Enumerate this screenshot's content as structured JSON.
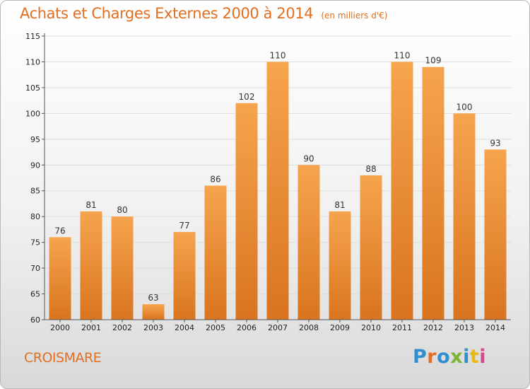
{
  "header": {
    "title": "Achats et Charges Externes 2000 à 2014",
    "subtitle": "(en milliers d'€)"
  },
  "footer": {
    "location": "CROISMARE",
    "logo_text": "Proxiti",
    "logo_colors": [
      "#2f8fd0",
      "#e06f22",
      "#2f8fd0",
      "#7ab532",
      "#2f8fd0",
      "#e8b818",
      "#d04a8e"
    ]
  },
  "chart_data": {
    "type": "bar",
    "categories": [
      "2000",
      "2001",
      "2002",
      "2003",
      "2004",
      "2005",
      "2006",
      "2007",
      "2008",
      "2009",
      "2010",
      "2011",
      "2012",
      "2013",
      "2014"
    ],
    "values": [
      76,
      81,
      80,
      63,
      77,
      86,
      102,
      110,
      90,
      81,
      88,
      110,
      109,
      100,
      93
    ],
    "data_labels": [
      "76",
      "81",
      "80",
      "63",
      "77",
      "86",
      "102",
      "110",
      "90",
      "81",
      "88",
      "110",
      "109",
      "100",
      "93"
    ],
    "yticks": [
      60,
      65,
      70,
      75,
      80,
      85,
      90,
      95,
      100,
      105,
      110,
      115
    ],
    "ytick_labels": [
      "60",
      "65",
      "70",
      "75",
      "80",
      "85",
      "90",
      "95",
      "100",
      "105",
      "110",
      "115"
    ],
    "ylim": [
      60,
      115
    ],
    "grid": true,
    "bar_color_light": "#f6a44e",
    "bar_color_dark": "#d9741f"
  }
}
